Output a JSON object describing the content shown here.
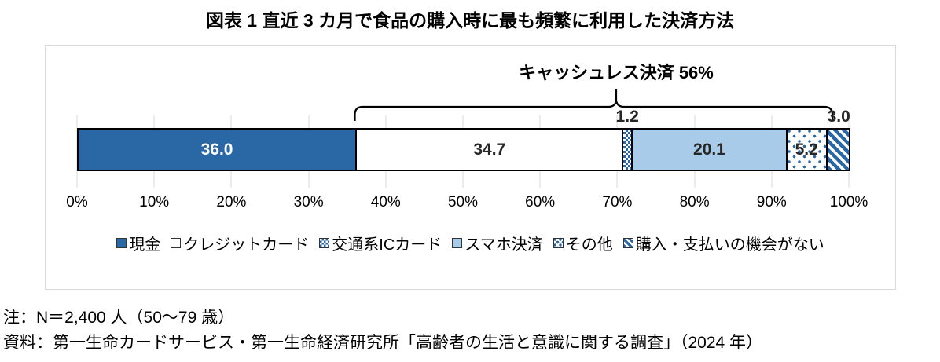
{
  "chart_data": {
    "type": "bar",
    "subtype": "horizontal-stacked",
    "title": "図表 1 直近 3 カ月で食品の購入時に最も頻繁に利用した決済方法",
    "annotation": {
      "text": "キャッシュレス決済 56%",
      "covers_from_pct": 36.0,
      "covers_to_pct": 92.0
    },
    "xlim": [
      0,
      100
    ],
    "x_ticks": [
      "0%",
      "10%",
      "20%",
      "30%",
      "40%",
      "50%",
      "60%",
      "70%",
      "80%",
      "90%",
      "100%"
    ],
    "grid": "vertical",
    "legend_position": "bottom",
    "segments": [
      {
        "id": "cash",
        "label": "現金",
        "value": 36.0,
        "display": "36.0",
        "pattern": "solid-dark",
        "label_placement": "inside",
        "label_color": "#ffffff"
      },
      {
        "id": "credit-card",
        "label": "クレジットカード",
        "value": 34.7,
        "display": "34.7",
        "pattern": "white",
        "label_placement": "inside",
        "label_color": "#262626"
      },
      {
        "id": "transit-ic-card",
        "label": "交通系ICカード",
        "value": 1.2,
        "display": "1.2",
        "pattern": "checker",
        "label_placement": "above",
        "label_color": "#262626"
      },
      {
        "id": "smartphone-payment",
        "label": "スマホ決済",
        "value": 20.1,
        "display": "20.1",
        "pattern": "solid-light",
        "label_placement": "inside",
        "label_color": "#262626"
      },
      {
        "id": "other",
        "label": "その他",
        "value": 5.2,
        "display": "5.2",
        "pattern": "dots",
        "label_placement": "inside",
        "label_color": "#262626"
      },
      {
        "id": "no-purchase-opportunity",
        "label": "購入・支払いの機会がない",
        "value": 3.0,
        "display": "3.0",
        "pattern": "stripes",
        "label_placement": "above",
        "label_color": "#262626"
      }
    ],
    "colors": {
      "dark_blue": "#2A68A5",
      "light_blue": "#A8CBE9",
      "grid": "#D9D9D9",
      "border": "#000000"
    }
  },
  "notes": {
    "line1": "注：N＝2,400 人（50～79 歳）",
    "line2": "資料：第一生命カードサービス・第一生命経済研究所「高齢者の生活と意識に関する調査」（2024 年）"
  }
}
